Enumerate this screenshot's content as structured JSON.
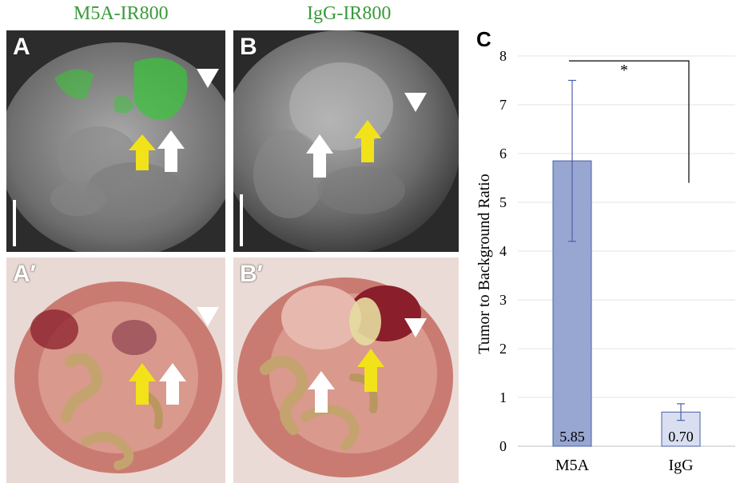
{
  "figure": {
    "col_titles": [
      "M5A-IR800",
      "IgG-IR800"
    ],
    "panel_labels": [
      "A",
      "B",
      "A′",
      "B′"
    ],
    "chart_label": "C",
    "colors": {
      "title_green": "#3a9a3a",
      "bar_m5a": "#98a6d2",
      "bar_igg": "#d9dff0",
      "bar_edge": "#4a60a8",
      "fluor": "#37c837"
    }
  },
  "chart_data": {
    "type": "bar",
    "categories": [
      "M5A",
      "IgG"
    ],
    "values": [
      5.85,
      0.7
    ],
    "value_labels": [
      "5.85",
      "0.70"
    ],
    "error": [
      1.65,
      0.17
    ],
    "ylabel": "Tumor to Background Ratio",
    "xlabel": "",
    "ylim": [
      0,
      8
    ],
    "yticks": [
      "0",
      "1",
      "2",
      "3",
      "4",
      "5",
      "6",
      "7",
      "8"
    ],
    "grid": true,
    "significance": "*"
  }
}
